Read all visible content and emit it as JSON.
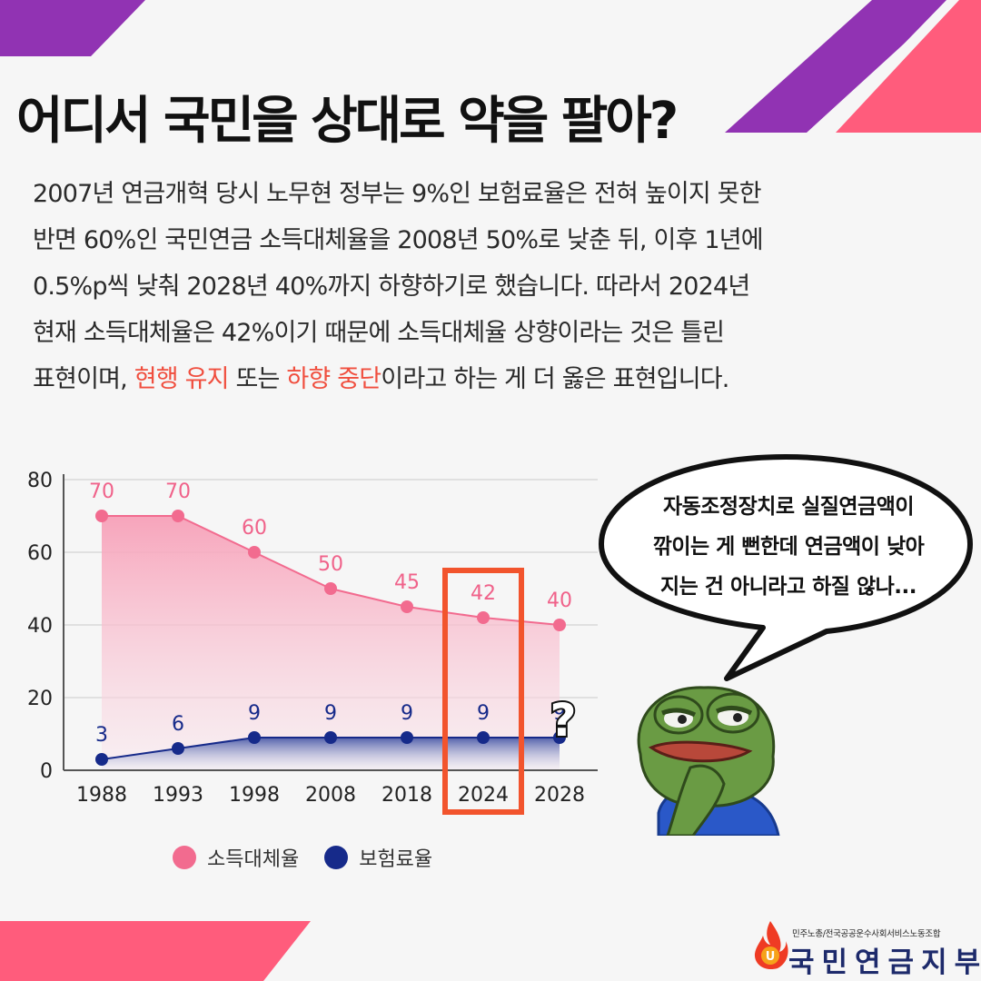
{
  "headline": "어디서 국민을 상대로 약을 팔아?",
  "body": {
    "lines": [
      "2007년 연금개혁 당시 노무현 정부는 9%인 보험료율은 전혀 높이지 못한",
      "반면 60%인 국민연금 소득대체율을 2008년 50%로 낮춘 뒤, 이후 1년에",
      "0.5%p씩 낮춰 2028년 40%까지 하향하기로 했습니다. 따라서 2024년",
      "현재 소득대체율은 42%이기 때문에 소득대체율 상향이라는 것은 틀린"
    ],
    "last_line": {
      "part1": "표현이며, ",
      "highlight1": "현행 유지",
      "part2": " 또는 ",
      "highlight2": "하향 중단",
      "part3": "이라고 하는 게 더 옳은 표현입니다."
    }
  },
  "chart_data": {
    "type": "line",
    "categories": [
      "1988",
      "1993",
      "1998",
      "2008",
      "2018",
      "2024",
      "2028"
    ],
    "series": [
      {
        "name": "소득대체율",
        "values": [
          70,
          70,
          60,
          50,
          45,
          42,
          40
        ],
        "color": "#f26b8f"
      },
      {
        "name": "보험료율",
        "values": [
          3,
          6,
          9,
          9,
          9,
          9,
          9
        ],
        "color": "#162a8a"
      }
    ],
    "ylim": [
      0,
      80
    ],
    "yticks": [
      "0",
      "20",
      "40",
      "60",
      "80"
    ],
    "grid": true,
    "legend": "bottom",
    "highlight_category": "2024",
    "highlight_color": "#f2542d",
    "annotation": "?"
  },
  "bubble": {
    "lines": [
      "자동조정장치로 실질연금액이",
      "깎이는 게 뻔한데 연금액이 낮아",
      "지는 건 아니라고 하질 않나..."
    ]
  },
  "logo": {
    "subtitle": "민주노총/전국공공운수사회서비스노동조합",
    "name": "국민연금지부"
  },
  "colors": {
    "purple": "#9133b3",
    "pink": "#ff5c7c",
    "highlight": "#f04e3e",
    "navy": "#1d2a6b"
  }
}
